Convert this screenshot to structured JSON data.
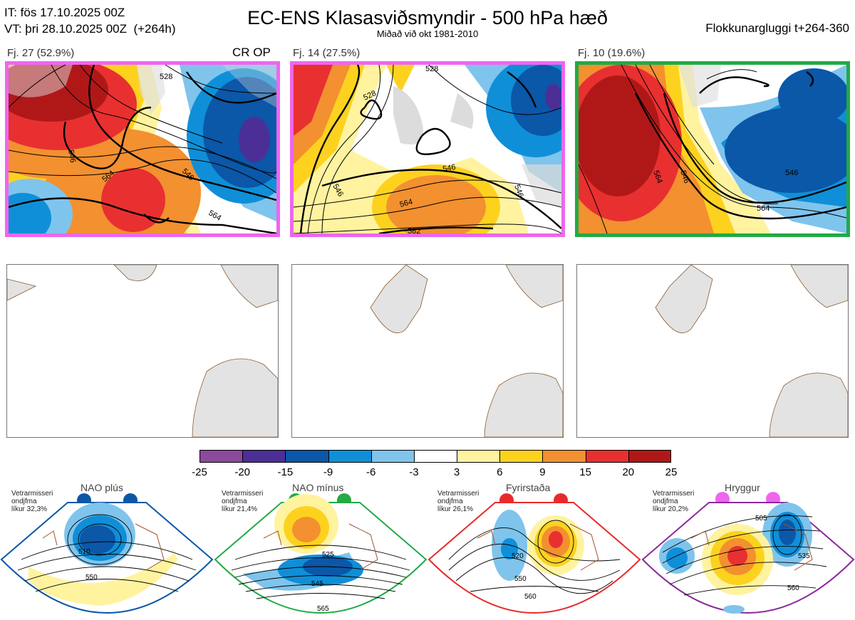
{
  "header": {
    "it": "IT: fös 17.10.2025 00Z",
    "vt": "VT: þri 28.10.2025 00Z  (+264h)",
    "title": "EC-ENS Klasasviðsmyndir - 500 hPa hæð",
    "subtitle": "Miðað við okt 1981-2010",
    "window": "Flokkunargluggi t+264-360"
  },
  "clusters": [
    {
      "label": "Fj. 27 (52.9%)",
      "tag": "CR OP",
      "frame_color": "#ee66ee",
      "contours": [
        "564",
        "546",
        "528",
        "546",
        "564"
      ]
    },
    {
      "label": "Fj. 14 (27.5%)",
      "tag": "",
      "frame_color": "#ee66ee",
      "contours": [
        "528",
        "528",
        "546",
        "546",
        "564",
        "582",
        "546"
      ]
    },
    {
      "label": "Fj. 10 (19.6%)",
      "tag": "",
      "frame_color": "#22aa44",
      "contours": [
        "546",
        "564",
        "546",
        "564"
      ]
    }
  ],
  "colorbar": {
    "ticks": [
      "-25",
      "-20",
      "-15",
      "-9",
      "-6",
      "-3",
      "3",
      "6",
      "9",
      "15",
      "20",
      "25"
    ],
    "colors": [
      "#8b4a9c",
      "#4b2f96",
      "#0b57a8",
      "#0f8fd8",
      "#7fc4ec",
      "#ffffff",
      "#fff3a0",
      "#fdd21f",
      "#f39030",
      "#e83030",
      "#b01818"
    ]
  },
  "regimes": [
    {
      "name": "NAO plús",
      "info": "Vetrarmisseri\nondjfma\nlíkur 32,3%",
      "color": "#0b57a8",
      "labels": [
        "510",
        "550"
      ]
    },
    {
      "name": "NAO mínus",
      "info": "Vetrarmisseri\nondjfma\nlíkur 21,4%",
      "color": "#22aa44",
      "labels": [
        "525",
        "545",
        "565"
      ]
    },
    {
      "name": "Fyrirstaða",
      "info": "Vetrarmisseri\nondjfma\nlíkur 26,1%",
      "color": "#e82a2a",
      "labels": [
        "520",
        "550",
        "560"
      ]
    },
    {
      "name": "Hryggur",
      "info": "Vetrarmisseri\nondjfma\nlíkur 20,2%",
      "color": "#ee66ee",
      "labels": [
        "505",
        "535",
        "560"
      ]
    }
  ]
}
